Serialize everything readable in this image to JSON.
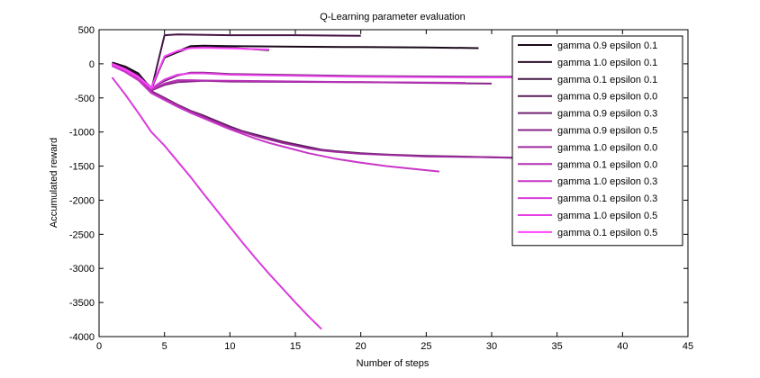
{
  "chart_data": {
    "type": "line",
    "title": "Q-Learning parameter evaluation",
    "xlabel": "Number of steps",
    "ylabel": "Accumulated reward",
    "xlim": [
      0,
      45
    ],
    "ylim": [
      -4000,
      500
    ],
    "xticks": [
      0,
      5,
      10,
      15,
      20,
      25,
      30,
      35,
      40,
      45
    ],
    "yticks": [
      500,
      0,
      -500,
      -1000,
      -1500,
      -2000,
      -2500,
      -3000,
      -3500,
      -4000
    ],
    "grid": false,
    "legend_position": "top-right",
    "series": [
      {
        "name": "gamma 0.9 epsilon 0.1",
        "color": "#1a0a1a",
        "points": [
          [
            1,
            20
          ],
          [
            2,
            -40
          ],
          [
            3,
            -140
          ],
          [
            4,
            -370
          ],
          [
            5,
            100
          ],
          [
            6,
            180
          ],
          [
            7,
            260
          ],
          [
            8,
            265
          ],
          [
            10,
            260
          ],
          [
            15,
            250
          ],
          [
            20,
            245
          ],
          [
            25,
            240
          ],
          [
            29,
            230
          ]
        ]
      },
      {
        "name": "gamma 1.0 epsilon 0.1",
        "color": "#2e0f2e",
        "points": [
          [
            1,
            0
          ],
          [
            2,
            -60
          ],
          [
            3,
            -170
          ],
          [
            4,
            -350
          ],
          [
            5,
            90
          ],
          [
            6,
            170
          ],
          [
            7,
            240
          ],
          [
            8,
            240
          ],
          [
            10,
            235
          ],
          [
            13,
            200
          ]
        ]
      },
      {
        "name": "gamma 0.1 epsilon 0.1",
        "color": "#451645",
        "points": [
          [
            1,
            10
          ],
          [
            2,
            -70
          ],
          [
            3,
            -180
          ],
          [
            4,
            -380
          ],
          [
            5,
            420
          ],
          [
            6,
            430
          ],
          [
            10,
            420
          ],
          [
            15,
            420
          ],
          [
            20,
            410
          ]
        ]
      },
      {
        "name": "gamma 0.9 epsilon 0.0",
        "color": "#5a1c5a",
        "points": [
          [
            1,
            -10
          ],
          [
            2,
            -90
          ],
          [
            3,
            -200
          ],
          [
            4,
            -400
          ],
          [
            5,
            -500
          ],
          [
            6,
            -600
          ],
          [
            7,
            -690
          ],
          [
            8,
            -760
          ],
          [
            9,
            -840
          ],
          [
            10,
            -920
          ],
          [
            11,
            -990
          ],
          [
            12,
            -1040
          ],
          [
            13,
            -1090
          ],
          [
            14,
            -1140
          ],
          [
            15,
            -1180
          ],
          [
            16,
            -1220
          ],
          [
            17,
            -1260
          ],
          [
            18,
            -1280
          ],
          [
            20,
            -1310
          ],
          [
            22,
            -1330
          ],
          [
            25,
            -1350
          ],
          [
            30,
            -1370
          ],
          [
            32,
            -1380
          ]
        ]
      },
      {
        "name": "gamma 0.9 epsilon 0.3",
        "color": "#701f70",
        "points": [
          [
            1,
            0
          ],
          [
            2,
            -80
          ],
          [
            3,
            -190
          ],
          [
            4,
            -360
          ],
          [
            5,
            -250
          ],
          [
            6,
            -170
          ],
          [
            7,
            -130
          ],
          [
            8,
            -130
          ],
          [
            10,
            -150
          ],
          [
            20,
            -180
          ],
          [
            30,
            -190
          ],
          [
            32,
            -190
          ]
        ]
      },
      {
        "name": "gamma 0.9 epsilon 0.5",
        "color": "#882588",
        "points": [
          [
            1,
            -20
          ],
          [
            2,
            -100
          ],
          [
            3,
            -210
          ],
          [
            4,
            -390
          ],
          [
            5,
            -310
          ],
          [
            6,
            -270
          ],
          [
            8,
            -250
          ],
          [
            10,
            -260
          ],
          [
            20,
            -270
          ],
          [
            30,
            -290
          ]
        ]
      },
      {
        "name": "gamma 1.0 epsilon 0.0",
        "color": "#9d2a9d",
        "points": [
          [
            1,
            -20
          ],
          [
            2,
            -100
          ],
          [
            3,
            -210
          ],
          [
            4,
            -410
          ],
          [
            5,
            -510
          ],
          [
            6,
            -610
          ],
          [
            7,
            -700
          ],
          [
            8,
            -780
          ],
          [
            9,
            -860
          ],
          [
            10,
            -940
          ],
          [
            11,
            -1000
          ],
          [
            12,
            -1060
          ],
          [
            13,
            -1110
          ],
          [
            14,
            -1160
          ],
          [
            15,
            -1200
          ],
          [
            16,
            -1240
          ],
          [
            17,
            -1270
          ],
          [
            18,
            -1290
          ],
          [
            20,
            -1320
          ],
          [
            25,
            -1360
          ],
          [
            30,
            -1370
          ],
          [
            32,
            -1375
          ]
        ]
      },
      {
        "name": "gamma 0.1 epsilon 0.0",
        "color": "#b330b3",
        "points": [
          [
            1,
            -20
          ],
          [
            2,
            -110
          ],
          [
            3,
            -220
          ],
          [
            4,
            -380
          ],
          [
            5,
            -290
          ],
          [
            6,
            -240
          ],
          [
            7,
            -240
          ],
          [
            8,
            -245
          ],
          [
            10,
            -250
          ],
          [
            20,
            -270
          ],
          [
            28,
            -280
          ]
        ]
      },
      {
        "name": "gamma 1.0 epsilon 0.3",
        "color": "#c836c8",
        "points": [
          [
            1,
            -30
          ],
          [
            2,
            -120
          ],
          [
            3,
            -240
          ],
          [
            4,
            -430
          ],
          [
            5,
            -530
          ],
          [
            6,
            -630
          ],
          [
            7,
            -720
          ],
          [
            8,
            -800
          ],
          [
            9,
            -880
          ],
          [
            10,
            -960
          ],
          [
            11,
            -1030
          ],
          [
            12,
            -1100
          ],
          [
            13,
            -1160
          ],
          [
            14,
            -1210
          ],
          [
            15,
            -1260
          ],
          [
            16,
            -1310
          ],
          [
            17,
            -1350
          ],
          [
            18,
            -1390
          ],
          [
            19,
            -1420
          ],
          [
            20,
            -1450
          ],
          [
            22,
            -1500
          ],
          [
            24,
            -1540
          ],
          [
            26,
            -1580
          ]
        ]
      },
      {
        "name": "gamma 0.1 epsilon 0.3",
        "color": "#da3cda",
        "points": [
          [
            1,
            -200
          ],
          [
            2,
            -450
          ],
          [
            3,
            -720
          ],
          [
            4,
            -1000
          ],
          [
            5,
            -1200
          ],
          [
            6,
            -1430
          ],
          [
            7,
            -1660
          ],
          [
            8,
            -1910
          ],
          [
            9,
            -2150
          ],
          [
            10,
            -2390
          ],
          [
            11,
            -2630
          ],
          [
            12,
            -2860
          ],
          [
            13,
            -3080
          ],
          [
            14,
            -3290
          ],
          [
            15,
            -3500
          ],
          [
            16,
            -3700
          ],
          [
            17,
            -3890
          ]
        ]
      },
      {
        "name": "gamma 1.0 epsilon 0.5",
        "color": "#e63fe6",
        "points": [
          [
            1,
            -10
          ],
          [
            2,
            -90
          ],
          [
            3,
            -200
          ],
          [
            4,
            -360
          ],
          [
            5,
            -230
          ],
          [
            6,
            -160
          ],
          [
            7,
            -140
          ],
          [
            8,
            -140
          ],
          [
            10,
            -160
          ],
          [
            20,
            -190
          ],
          [
            30,
            -200
          ],
          [
            40,
            -200
          ]
        ]
      },
      {
        "name": "gamma 0.1 epsilon 0.5",
        "color": "#ff44ff",
        "points": [
          [
            1,
            0
          ],
          [
            2,
            -80
          ],
          [
            3,
            -190
          ],
          [
            4,
            -350
          ],
          [
            5,
            110
          ],
          [
            6,
            190
          ],
          [
            7,
            230
          ],
          [
            8,
            235
          ],
          [
            10,
            225
          ],
          [
            13,
            210
          ]
        ]
      }
    ]
  }
}
